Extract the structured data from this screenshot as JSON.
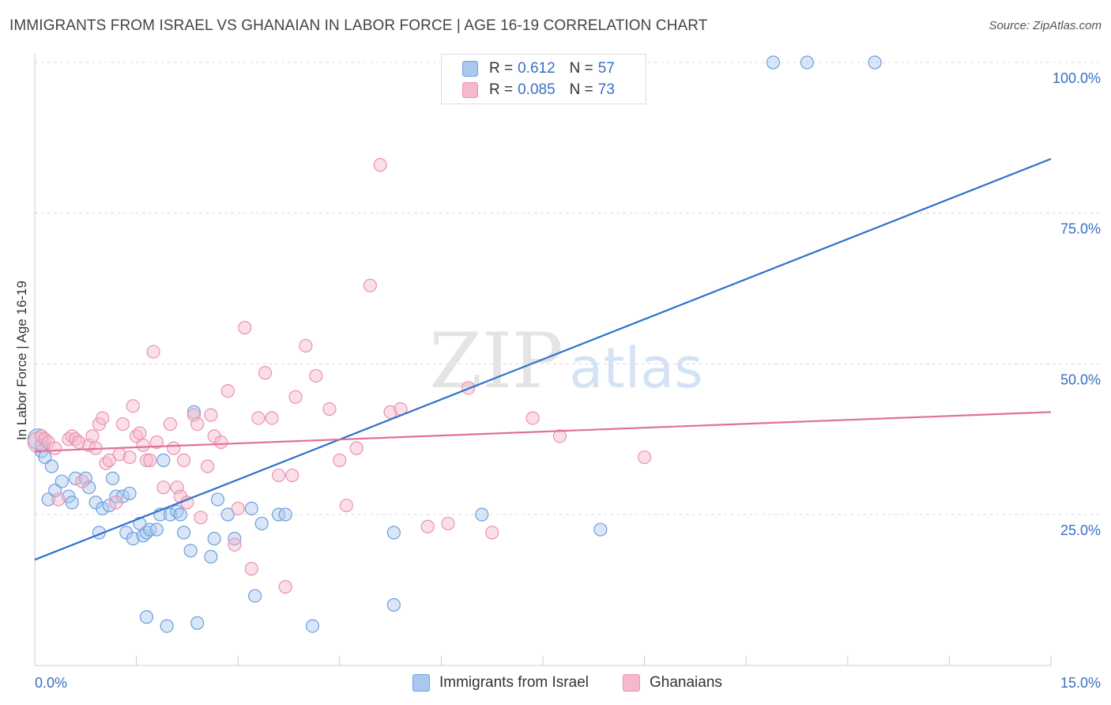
{
  "title": "IMMIGRANTS FROM ISRAEL VS GHANAIAN IN LABOR FORCE | AGE 16-19 CORRELATION CHART",
  "source": "Source: ZipAtlas.com",
  "watermark": {
    "zip": "ZIP",
    "atlas": "atlas"
  },
  "legend": {
    "israel": {
      "r_label": "R =",
      "r_value": "0.612",
      "n_label": "N =",
      "n_value": "57"
    },
    "ghana": {
      "r_label": "R =",
      "r_value": "0.085",
      "n_label": "N =",
      "n_value": "73"
    }
  },
  "colors": {
    "israel_fill": "#a8c8f0",
    "israel_stroke": "#6e9fdc",
    "israel_line": "#2f70d0",
    "ghana_fill": "#f5b8cc",
    "ghana_stroke": "#e992b0",
    "ghana_line": "#e0709a",
    "axis_text": "#3a6fc4",
    "grid": "#dcdcdc"
  },
  "chart_data": {
    "type": "scatter",
    "title": "IMMIGRANTS FROM ISRAEL VS GHANAIAN IN LABOR FORCE | AGE 16-19 CORRELATION CHART",
    "xlabel": "",
    "ylabel": "In Labor Force | Age 16-19",
    "xlim": [
      0,
      15
    ],
    "ylim": [
      0,
      105
    ],
    "x_tick_labels": [
      {
        "value": 0,
        "label": "0.0%"
      },
      {
        "value": 15,
        "label": "15.0%"
      }
    ],
    "y_tick_labels": [
      {
        "value": 25,
        "label": "25.0%"
      },
      {
        "value": 50,
        "label": "50.0%"
      },
      {
        "value": 75,
        "label": "75.0%"
      },
      {
        "value": 100,
        "label": "100.0%"
      }
    ],
    "series": [
      {
        "name": "Immigrants from Israel",
        "key": "israel",
        "trend": {
          "x": [
            0,
            15
          ],
          "y": [
            17.5,
            84
          ]
        },
        "points": [
          [
            0.05,
            37.5
          ],
          [
            0.1,
            35.5
          ],
          [
            0.15,
            34.5
          ],
          [
            0.25,
            33
          ],
          [
            0.2,
            27.5
          ],
          [
            0.3,
            29
          ],
          [
            0.4,
            30.5
          ],
          [
            0.5,
            28
          ],
          [
            0.55,
            27
          ],
          [
            0.6,
            31
          ],
          [
            0.75,
            31
          ],
          [
            0.8,
            29.5
          ],
          [
            0.9,
            27
          ],
          [
            0.95,
            22
          ],
          [
            1.0,
            26
          ],
          [
            1.1,
            26.5
          ],
          [
            1.15,
            31
          ],
          [
            1.2,
            28
          ],
          [
            1.3,
            28
          ],
          [
            1.35,
            22
          ],
          [
            1.4,
            28.5
          ],
          [
            1.45,
            21
          ],
          [
            1.55,
            23.5
          ],
          [
            1.6,
            21.5
          ],
          [
            1.65,
            22
          ],
          [
            1.7,
            22.5
          ],
          [
            1.8,
            22.5
          ],
          [
            1.85,
            25
          ],
          [
            1.9,
            34
          ],
          [
            2.0,
            25
          ],
          [
            2.1,
            25.5
          ],
          [
            2.15,
            25
          ],
          [
            2.2,
            22
          ],
          [
            2.3,
            19
          ],
          [
            2.35,
            42
          ],
          [
            2.6,
            18
          ],
          [
            2.65,
            21
          ],
          [
            2.7,
            27.5
          ],
          [
            2.85,
            25
          ],
          [
            2.95,
            21
          ],
          [
            3.2,
            26
          ],
          [
            3.35,
            23.5
          ],
          [
            3.6,
            25
          ],
          [
            3.7,
            25
          ],
          [
            5.3,
            22
          ],
          [
            5.3,
            10
          ],
          [
            6.6,
            25
          ],
          [
            8.35,
            22.5
          ],
          [
            1.65,
            8
          ],
          [
            1.95,
            6.5
          ],
          [
            2.4,
            7
          ],
          [
            3.25,
            11.5
          ],
          [
            4.1,
            6.5
          ],
          [
            10.9,
            100
          ],
          [
            11.4,
            100
          ],
          [
            12.4,
            100
          ],
          [
            0.1,
            36.5
          ]
        ]
      },
      {
        "name": "Ghanaians",
        "key": "ghana",
        "trend": {
          "x": [
            0,
            15
          ],
          "y": [
            35.5,
            42
          ]
        },
        "points": [
          [
            0.05,
            37
          ],
          [
            0.1,
            38
          ],
          [
            0.15,
            37.5
          ],
          [
            0.2,
            37
          ],
          [
            0.3,
            36
          ],
          [
            0.35,
            27.5
          ],
          [
            0.5,
            37.5
          ],
          [
            0.55,
            38
          ],
          [
            0.6,
            37.5
          ],
          [
            0.65,
            37
          ],
          [
            0.7,
            30.5
          ],
          [
            0.8,
            36.5
          ],
          [
            0.85,
            38
          ],
          [
            0.9,
            36
          ],
          [
            0.95,
            40
          ],
          [
            1.0,
            41
          ],
          [
            1.05,
            33.5
          ],
          [
            1.1,
            34
          ],
          [
            1.2,
            27
          ],
          [
            1.25,
            35
          ],
          [
            1.3,
            40
          ],
          [
            1.4,
            34.5
          ],
          [
            1.45,
            43
          ],
          [
            1.5,
            38
          ],
          [
            1.6,
            36.5
          ],
          [
            1.65,
            34
          ],
          [
            1.7,
            34
          ],
          [
            1.75,
            52
          ],
          [
            1.8,
            37
          ],
          [
            1.9,
            29.5
          ],
          [
            2.0,
            40
          ],
          [
            2.05,
            36
          ],
          [
            2.1,
            29.5
          ],
          [
            2.15,
            28
          ],
          [
            2.2,
            34
          ],
          [
            2.35,
            41.5
          ],
          [
            2.4,
            40
          ],
          [
            2.45,
            24.5
          ],
          [
            2.55,
            33
          ],
          [
            2.6,
            41.5
          ],
          [
            2.65,
            38
          ],
          [
            2.75,
            37
          ],
          [
            2.85,
            45.5
          ],
          [
            2.95,
            20
          ],
          [
            3.0,
            26
          ],
          [
            3.1,
            56
          ],
          [
            3.2,
            16
          ],
          [
            3.3,
            41
          ],
          [
            3.4,
            48.5
          ],
          [
            3.5,
            41
          ],
          [
            3.6,
            31.5
          ],
          [
            3.7,
            13
          ],
          [
            3.8,
            31.5
          ],
          [
            3.85,
            44.5
          ],
          [
            4.0,
            53
          ],
          [
            4.15,
            48
          ],
          [
            4.35,
            42.5
          ],
          [
            4.5,
            34
          ],
          [
            4.6,
            26.5
          ],
          [
            4.75,
            36
          ],
          [
            4.95,
            63
          ],
          [
            5.1,
            83
          ],
          [
            5.25,
            42
          ],
          [
            5.4,
            42.5
          ],
          [
            5.8,
            23
          ],
          [
            6.1,
            23.5
          ],
          [
            6.4,
            46
          ],
          [
            6.75,
            22
          ],
          [
            7.35,
            41
          ],
          [
            7.75,
            38
          ],
          [
            9.0,
            34.5
          ],
          [
            1.55,
            38.5
          ],
          [
            2.25,
            27
          ]
        ]
      }
    ]
  }
}
